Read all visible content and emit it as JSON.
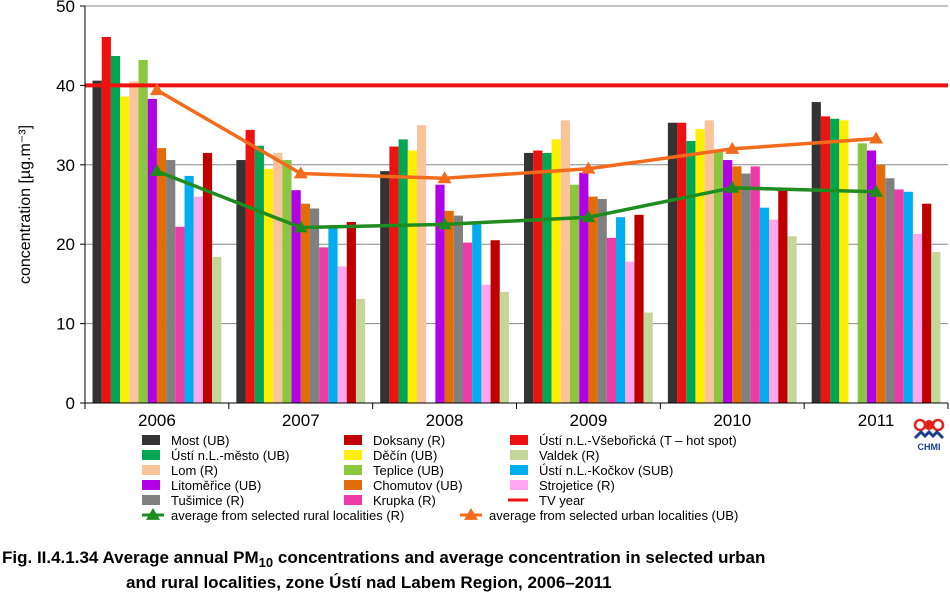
{
  "chart_data": {
    "type": "bar",
    "ylabel": "concentration [µg.m⁻³]",
    "ylim": [
      0,
      50
    ],
    "yticks": [
      0,
      10,
      20,
      30,
      40,
      50
    ],
    "categories": [
      "2006",
      "2007",
      "2008",
      "2009",
      "2010",
      "2011"
    ],
    "grid": "horizontal",
    "legend_position": "bottom",
    "series": [
      {
        "name": "Most (UB)",
        "color": "#333333",
        "values": [
          40.6,
          30.6,
          29.2,
          31.5,
          35.3,
          37.9
        ]
      },
      {
        "name": "Ústí n.L.-Všebořická (T – hot spot)",
        "color": "#ee1111",
        "values": [
          46.1,
          34.4,
          32.3,
          31.8,
          35.3,
          36.1
        ]
      },
      {
        "name": "Ústí n.L.-město (UB)",
        "color": "#00a651",
        "values": [
          43.7,
          32.4,
          33.2,
          31.5,
          33.0,
          35.8
        ]
      },
      {
        "name": "Děčín (UB)",
        "color": "#ffee00",
        "values": [
          38.6,
          29.5,
          31.8,
          33.2,
          34.5,
          35.6
        ]
      },
      {
        "name": "Lom (R)",
        "color": "#f9c49a",
        "values": [
          40.5,
          31.5,
          35.0,
          35.6,
          35.6,
          null
        ]
      },
      {
        "name": "Teplice (UB)",
        "color": "#8cc63f",
        "values": [
          43.2,
          30.6,
          null,
          27.5,
          31.8,
          32.7
        ]
      },
      {
        "name": "Litoměřice (UB)",
        "color": "#b100e8",
        "values": [
          38.3,
          26.8,
          27.5,
          29.0,
          30.6,
          31.8
        ]
      },
      {
        "name": "Chomutov (UB)",
        "color": "#e36c0a",
        "values": [
          32.1,
          25.1,
          24.2,
          26.0,
          29.8,
          30.0
        ]
      },
      {
        "name": "Tušimice (R)",
        "color": "#808080",
        "values": [
          30.6,
          24.5,
          23.6,
          25.7,
          28.9,
          28.3
        ]
      },
      {
        "name": "Krupka (R)",
        "color": "#ee3aa9",
        "values": [
          22.2,
          19.6,
          20.2,
          20.8,
          29.8,
          26.9
        ]
      },
      {
        "name": "Ústí n.L.-Kočkov (SUB)",
        "color": "#00aeef",
        "values": [
          28.6,
          22.2,
          22.5,
          23.4,
          24.6,
          26.6
        ]
      },
      {
        "name": "Strojetice (R)",
        "color": "#ffa6f0",
        "values": [
          26.0,
          17.2,
          14.9,
          17.8,
          23.1,
          21.3
        ]
      },
      {
        "name": "Doksany (R)",
        "color": "#c00000",
        "values": [
          31.5,
          22.8,
          20.5,
          23.7,
          27.0,
          25.1
        ]
      },
      {
        "name": "Valdek (R)",
        "color": "#c4d79b",
        "values": [
          18.4,
          13.1,
          14.0,
          11.4,
          21.0,
          19.0
        ]
      }
    ],
    "limit_line": {
      "name": "TV year",
      "value": 40,
      "color": "#ee1111"
    },
    "lines": [
      {
        "name": "average from selected rural localities (R)",
        "color": "#1e8c1e",
        "values": [
          29.2,
          22.1,
          22.5,
          23.4,
          27.1,
          26.6
        ]
      },
      {
        "name": "average from selected urban localities  (UB)",
        "color": "#f26b1d",
        "values": [
          39.4,
          28.9,
          28.3,
          29.5,
          32.0,
          33.3
        ]
      }
    ]
  },
  "legend": {
    "col1": [
      {
        "label": "Most (UB)",
        "color": "#333333"
      },
      {
        "label": "Ústí n.L.-město (UB)",
        "color": "#00a651"
      },
      {
        "label": "Lom (R)",
        "color": "#f9c49a"
      },
      {
        "label": "Litoměřice (UB)",
        "color": "#b100e8"
      },
      {
        "label": "Tušimice (R)",
        "color": "#808080"
      }
    ],
    "col2": [
      {
        "label": "Doksany (R)",
        "color": "#c00000"
      },
      {
        "label": "Děčín (UB)",
        "color": "#ffee00"
      },
      {
        "label": "Teplice (UB)",
        "color": "#8cc63f"
      },
      {
        "label": "Chomutov (UB)",
        "color": "#e36c0a"
      },
      {
        "label": "Krupka (R)",
        "color": "#ee3aa9"
      }
    ],
    "col3": [
      {
        "label": "Ústí n.L.-Všebořická (T – hot spot)",
        "color": "#ee1111"
      },
      {
        "label": "Valdek (R)",
        "color": "#c4d79b"
      },
      {
        "label": "Ústí n.L.-Kočkov (SUB)",
        "color": "#00aeef"
      },
      {
        "label": "Strojetice (R)",
        "color": "#ffa6f0"
      },
      {
        "label": "TV year",
        "color": "#ee1111",
        "line": true
      }
    ],
    "line_items": [
      {
        "label": "average from selected rural localities (R)",
        "color": "#1e8c1e"
      },
      {
        "label": "average from selected urban localities  (UB)",
        "color": "#f26b1d"
      }
    ]
  },
  "caption": {
    "prefix": "Fig. II.4.1.34  Average annual PM",
    "subscript": "10",
    "rest_line1": " concentrations and average concentration in selected urban",
    "line2": "and rural localities, zone Ústí nad Labem Region, 2006–2011"
  },
  "logo": {
    "text": "CHMI",
    "color": "#1a3f8f",
    "accent": "#e2231a"
  }
}
